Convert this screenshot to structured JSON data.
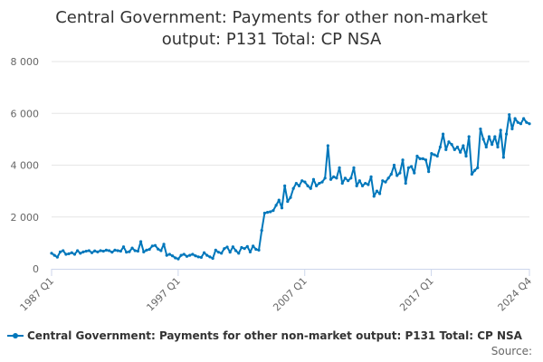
{
  "title_lines": [
    "Central Government: Payments for other non-market",
    "output: P131 Total: CP NSA"
  ],
  "source_label": "Source:",
  "colors": {
    "series": "#0077bb",
    "grid": "#e6e6e6",
    "axis": "#ccd6eb"
  },
  "chart_data": {
    "type": "line",
    "title": "Central Government: Payments for other non-market output: P131 Total: CP NSA",
    "ylim": [
      0,
      8000
    ],
    "y_ticks": [
      0,
      2000,
      4000,
      6000,
      8000
    ],
    "y_tick_labels": [
      "0",
      "2 000",
      "4 000",
      "6 000",
      "8 000"
    ],
    "x_tick_labels": [
      "1987 Q1",
      "1997 Q1",
      "2007 Q1",
      "2017 Q1",
      "2024 Q4"
    ],
    "x_start": "1987 Q1",
    "x_end": "2024 Q4",
    "grid": true,
    "legend_position": "bottom",
    "series": [
      {
        "name": "Central Government: Payments for other non-market output: P131 Total: CP NSA",
        "frequency": "quarterly",
        "values": [
          600,
          520,
          450,
          650,
          700,
          560,
          580,
          620,
          560,
          700,
          600,
          650,
          680,
          700,
          620,
          690,
          650,
          700,
          680,
          720,
          700,
          640,
          720,
          700,
          680,
          850,
          640,
          660,
          800,
          700,
          680,
          1050,
          650,
          720,
          750,
          880,
          900,
          760,
          700,
          950,
          520,
          560,
          500,
          420,
          380,
          520,
          560,
          480,
          520,
          560,
          500,
          460,
          440,
          620,
          520,
          460,
          400,
          720,
          640,
          600,
          780,
          840,
          640,
          850,
          700,
          600,
          820,
          780,
          860,
          650,
          880,
          750,
          720,
          1480,
          2150,
          2180,
          2200,
          2250,
          2450,
          2650,
          2350,
          3200,
          2600,
          2750,
          3100,
          3300,
          3200,
          3400,
          3350,
          3200,
          3100,
          3450,
          3200,
          3300,
          3350,
          3500,
          4750,
          3450,
          3550,
          3500,
          3900,
          3300,
          3500,
          3400,
          3500,
          3900,
          3200,
          3400,
          3200,
          3300,
          3250,
          3550,
          2800,
          3000,
          2900,
          3400,
          3350,
          3500,
          3650,
          4000,
          3600,
          3700,
          4200,
          3300,
          3900,
          3950,
          3700,
          4350,
          4250,
          4250,
          4200,
          3750,
          4450,
          4400,
          4350,
          4700,
          5200,
          4600,
          4900,
          4800,
          4600,
          4700,
          4500,
          4750,
          4350,
          5100,
          3650,
          3800,
          3900,
          5400,
          5000,
          4700,
          5100,
          4800,
          5100,
          4700,
          5350,
          4300,
          5200,
          5950,
          5400,
          5800,
          5650,
          5600,
          5800,
          5650,
          5600
        ]
      }
    ]
  }
}
